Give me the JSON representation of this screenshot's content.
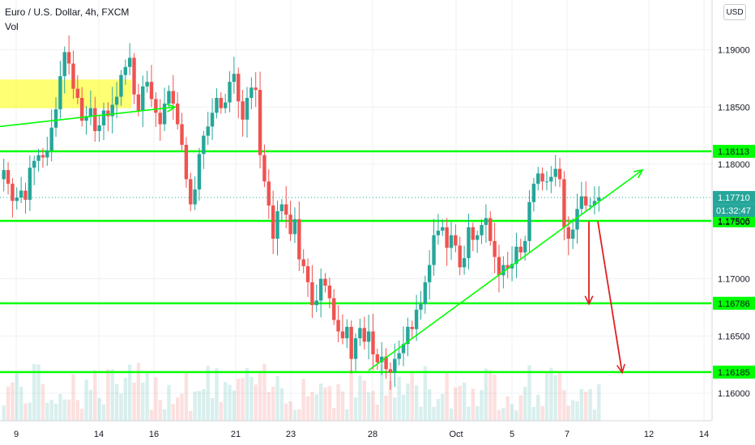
{
  "header": {
    "symbol_title": "Euro / U.S. Dollar, 4h, FXCM",
    "volume_label": "Vol",
    "currency_button": "USD"
  },
  "colors": {
    "up": "#26a69a",
    "down": "#ef5350",
    "level_line": "#00ff00",
    "level_label_bg": "#00ff00",
    "highlight_zone": "#ffff00",
    "arrow": "#e02020",
    "price_label_bg": "#26a69a",
    "grid": "#eef0f3"
  },
  "chart_data": {
    "type": "candlestick",
    "title": "Euro / U.S. Dollar, 4h, FXCM",
    "xlabel": "",
    "ylabel": "",
    "ylim": [
      1.1576,
      1.19435
    ],
    "grid": true,
    "x_ticks": [
      "9",
      "14",
      "16",
      "21",
      "23",
      "28",
      "Oct",
      "5",
      "7",
      "12",
      "14"
    ],
    "y_ticks": [
      "1.19000",
      "1.18500",
      "1.18000",
      "1.17500",
      "1.17000",
      "1.16500",
      "1.16000"
    ],
    "y_tick_values": [
      1.19,
      1.185,
      1.18,
      1.175,
      1.17,
      1.165,
      1.16
    ],
    "horizontal_levels": [
      1.18113,
      1.17506,
      1.16786,
      1.16185
    ],
    "horizontal_level_labels": [
      "1.18113",
      "1.17506",
      "1.16786",
      "1.16185"
    ],
    "current_price": "1.17710",
    "current_price_value": 1.1771,
    "countdown": "01:32:47",
    "close": [
      1.1795,
      1.1783,
      1.1768,
      1.1771,
      1.1777,
      1.1769,
      1.1797,
      1.1803,
      1.1808,
      1.1806,
      1.1812,
      1.1832,
      1.1848,
      1.1877,
      1.1898,
      1.1888,
      1.1866,
      1.1858,
      1.1838,
      1.1842,
      1.1849,
      1.1829,
      1.1834,
      1.1847,
      1.1842,
      1.1852,
      1.1859,
      1.1878,
      1.1885,
      1.1893,
      1.1861,
      1.1847,
      1.1868,
      1.1872,
      1.1857,
      1.1845,
      1.1835,
      1.1853,
      1.1864,
      1.1853,
      1.1835,
      1.1817,
      1.1787,
      1.1765,
      1.1778,
      1.1809,
      1.1825,
      1.1833,
      1.1845,
      1.1858,
      1.1849,
      1.1854,
      1.1872,
      1.1879,
      1.1855,
      1.1839,
      1.1858,
      1.1867,
      1.1865,
      1.1808,
      1.1785,
      1.1764,
      1.1735,
      1.1759,
      1.1765,
      1.1756,
      1.1739,
      1.1752,
      1.1717,
      1.1711,
      1.1697,
      1.1677,
      1.1681,
      1.17,
      1.1694,
      1.1683,
      1.1664,
      1.1654,
      1.1648,
      1.1658,
      1.163,
      1.1648,
      1.1657,
      1.1645,
      1.1654,
      1.1634,
      1.1627,
      1.1632,
      1.1621,
      1.1618,
      1.163,
      1.1635,
      1.1643,
      1.1658,
      1.1656,
      1.1673,
      1.1678,
      1.1697,
      1.1712,
      1.1738,
      1.1742,
      1.1745,
      1.1727,
      1.1738,
      1.1729,
      1.171,
      1.1718,
      1.1745,
      1.1734,
      1.1738,
      1.1747,
      1.1753,
      1.1733,
      1.1719,
      1.1703,
      1.1712,
      1.1709,
      1.1713,
      1.1728,
      1.1723,
      1.1733,
      1.1767,
      1.1783,
      1.1792,
      1.1785,
      1.1785,
      1.1789,
      1.1796,
      1.1787,
      1.1745,
      1.1735,
      1.1743,
      1.1761,
      1.1772,
      1.1764,
      1.1764,
      1.1768,
      1.1771
    ]
  }
}
